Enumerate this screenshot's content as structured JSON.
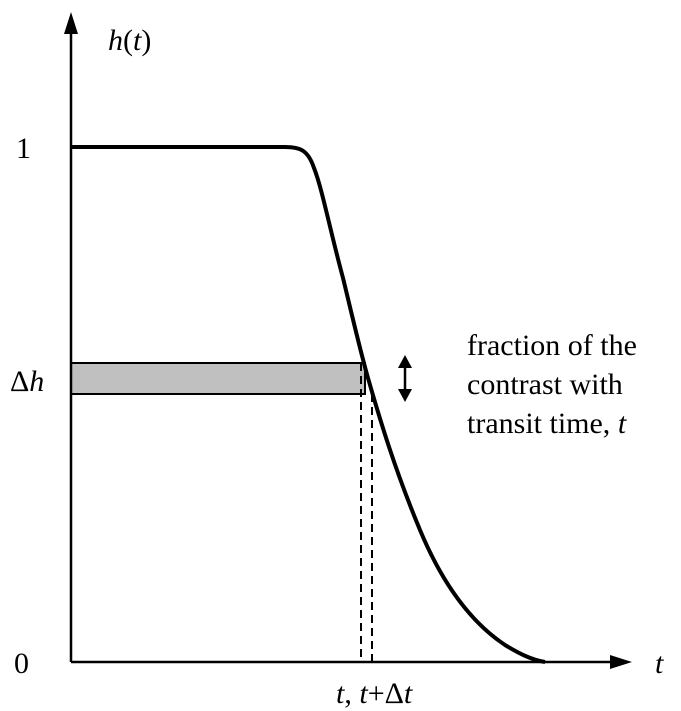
{
  "colors": {
    "ink": "#000000",
    "band_fill": "#c0c0c0",
    "background": "#ffffff"
  },
  "axes": {
    "y_label_func": "h",
    "y_label_paren_open": "(",
    "y_label_var": "t",
    "y_label_paren_close": ")",
    "x_label": "t",
    "y_tick_top": "1",
    "y_tick_bottom": "0",
    "y_tick_delta_symbol": "Δ",
    "y_tick_delta_var": "h"
  },
  "x_marker": {
    "t1": "t",
    "sep": ", ",
    "t2": "t",
    "plus": "+Δ",
    "t3": "t"
  },
  "annotation": {
    "line1": "fraction of the",
    "line2": "contrast with",
    "line3_text": "transit time, ",
    "line3_var": "t"
  },
  "icons": {
    "band_arrow": "double-vertical-arrow-icon"
  }
}
